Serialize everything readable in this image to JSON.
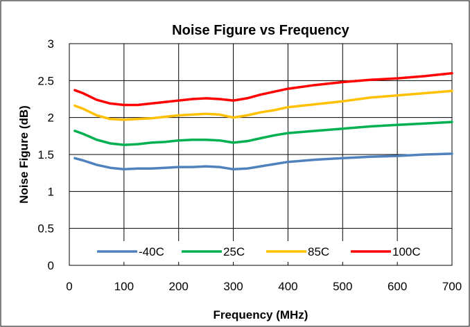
{
  "chart_data": {
    "type": "line",
    "title": "Noise Figure vs Frequency",
    "xlabel": "Frequency (MHz)",
    "ylabel": "Noise Figure (dB)",
    "xlim": [
      0,
      700
    ],
    "ylim": [
      0,
      3
    ],
    "xticks": [
      0,
      100,
      200,
      300,
      400,
      500,
      600,
      700
    ],
    "yticks": [
      0,
      0.5,
      1,
      1.5,
      2,
      2.5,
      3
    ],
    "xtick_labels": [
      "0",
      "100",
      "200",
      "300",
      "400",
      "500",
      "600",
      "700"
    ],
    "ytick_labels": [
      "0",
      "0.5",
      "1",
      "1.5",
      "2",
      "2.5",
      "3"
    ],
    "grid": true,
    "legend_position": "bottom-inside",
    "x": [
      10,
      25,
      50,
      75,
      100,
      125,
      150,
      175,
      200,
      225,
      250,
      275,
      300,
      325,
      350,
      375,
      400,
      450,
      500,
      550,
      600,
      650,
      700
    ],
    "series": [
      {
        "name": "-40C",
        "color": "#4F81BD",
        "values": [
          1.45,
          1.42,
          1.36,
          1.32,
          1.3,
          1.31,
          1.31,
          1.32,
          1.33,
          1.33,
          1.34,
          1.33,
          1.3,
          1.31,
          1.34,
          1.37,
          1.4,
          1.43,
          1.45,
          1.47,
          1.48,
          1.5,
          1.51
        ]
      },
      {
        "name": "25C",
        "color": "#00B050",
        "values": [
          1.82,
          1.78,
          1.7,
          1.65,
          1.63,
          1.64,
          1.66,
          1.67,
          1.69,
          1.7,
          1.7,
          1.69,
          1.66,
          1.68,
          1.72,
          1.76,
          1.79,
          1.82,
          1.85,
          1.88,
          1.9,
          1.92,
          1.94
        ]
      },
      {
        "name": "85C",
        "color": "#FFC000",
        "values": [
          2.16,
          2.12,
          2.03,
          1.98,
          1.97,
          1.98,
          1.99,
          2.01,
          2.03,
          2.04,
          2.05,
          2.04,
          2.0,
          2.03,
          2.07,
          2.1,
          2.14,
          2.18,
          2.22,
          2.27,
          2.3,
          2.33,
          2.36
        ]
      },
      {
        "name": "100C",
        "color": "#FF0000",
        "values": [
          2.37,
          2.33,
          2.24,
          2.19,
          2.17,
          2.17,
          2.19,
          2.21,
          2.23,
          2.25,
          2.26,
          2.25,
          2.23,
          2.26,
          2.31,
          2.35,
          2.39,
          2.44,
          2.48,
          2.51,
          2.53,
          2.56,
          2.6
        ]
      }
    ]
  }
}
